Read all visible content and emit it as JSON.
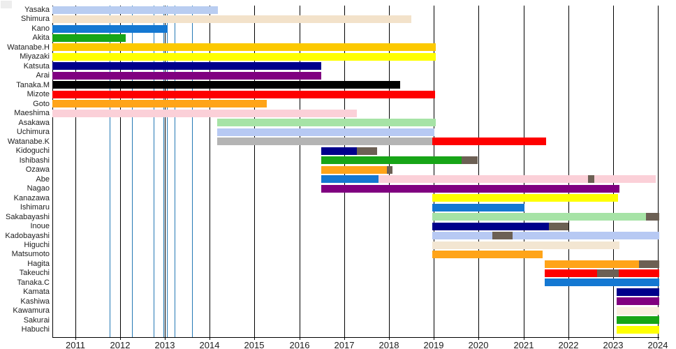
{
  "chart_data": {
    "type": "gantt",
    "x_axis": {
      "tick_labels": [
        "2011",
        "2012",
        "2013",
        "2014",
        "2015",
        "2016",
        "2017",
        "2018",
        "2019",
        "2020",
        "2021",
        "2022",
        "2023",
        "2024"
      ],
      "tick_years": [
        2011,
        2012,
        2013,
        2014,
        2015,
        2016,
        2017,
        2018,
        2019,
        2020,
        2021,
        2022,
        2023,
        2024
      ],
      "range": [
        2010.49,
        2024.03
      ],
      "grid": true
    },
    "colors": {
      "grid_line": "#000000",
      "axis_line": "#000000",
      "event_line": "#2579b5",
      "text": "#1c1c1c",
      "background": "#ffffff",
      "break_segment": "#6c6054"
    },
    "event_line_years": [
      2011.76,
      2012.27,
      2012.75,
      2012.97,
      2013.04,
      2013.22,
      2013.61
    ],
    "rows": [
      {
        "name": "Yasaka",
        "segments": [
          {
            "start": 2010.49,
            "end": 2014.18,
            "color": "#b9cdf1"
          }
        ]
      },
      {
        "name": "Shimura",
        "segments": [
          {
            "start": 2010.49,
            "end": 2018.5,
            "color": "#f3e2ca"
          }
        ]
      },
      {
        "name": "Kano",
        "segments": [
          {
            "start": 2010.49,
            "end": 2013.06,
            "color": "#1478d2"
          }
        ]
      },
      {
        "name": "Akita",
        "segments": [
          {
            "start": 2010.49,
            "end": 2012.12,
            "color": "#17a517"
          }
        ]
      },
      {
        "name": "Watanabe.H",
        "segments": [
          {
            "start": 2010.49,
            "end": 2019.05,
            "color": "#fcc900"
          }
        ]
      },
      {
        "name": "Miyazaki",
        "segments": [
          {
            "start": 2010.49,
            "end": 2019.05,
            "color": "#ffff00"
          }
        ]
      },
      {
        "name": "Katsuta",
        "segments": [
          {
            "start": 2010.49,
            "end": 2016.49,
            "color": "#00008b"
          }
        ]
      },
      {
        "name": "Arai",
        "segments": [
          {
            "start": 2010.49,
            "end": 2016.49,
            "color": "#800080"
          }
        ]
      },
      {
        "name": "Tanaka.M",
        "segments": [
          {
            "start": 2010.49,
            "end": 2018.25,
            "color": "#000000"
          }
        ]
      },
      {
        "name": "Mizote",
        "segments": [
          {
            "start": 2010.49,
            "end": 2019.02,
            "color": "#fe0000"
          }
        ]
      },
      {
        "name": "Goto",
        "segments": [
          {
            "start": 2010.49,
            "end": 2015.27,
            "color": "#ffa419"
          }
        ]
      },
      {
        "name": "Maeshima",
        "segments": [
          {
            "start": 2010.49,
            "end": 2017.29,
            "color": "#fbd0d8"
          }
        ]
      },
      {
        "name": "Asakawa",
        "segments": [
          {
            "start": 2014.17,
            "end": 2019.05,
            "color": "#a6e3a6"
          }
        ]
      },
      {
        "name": "Uchimura",
        "segments": [
          {
            "start": 2014.17,
            "end": 2019.02,
            "color": "#b7c9f3"
          }
        ]
      },
      {
        "name": "Watanabe.K",
        "segments": [
          {
            "start": 2014.17,
            "end": 2018.97,
            "color": "#b4b4b4"
          },
          {
            "start": 2018.97,
            "end": 2021.51,
            "color": "#fe0000"
          }
        ]
      },
      {
        "name": "Kidoguchi",
        "segments": [
          {
            "start": 2016.49,
            "end": 2017.29,
            "color": "#00008b"
          },
          {
            "start": 2017.29,
            "end": 2017.74,
            "color": "#6c6054"
          }
        ]
      },
      {
        "name": "Ishibashi",
        "segments": [
          {
            "start": 2016.49,
            "end": 2019.62,
            "color": "#17a517"
          },
          {
            "start": 2019.62,
            "end": 2019.98,
            "color": "#6c6054"
          }
        ]
      },
      {
        "name": "Ozawa",
        "segments": [
          {
            "start": 2016.49,
            "end": 2017.96,
            "color": "#ffa419"
          },
          {
            "start": 2017.96,
            "end": 2018.08,
            "color": "#6c6054"
          }
        ]
      },
      {
        "name": "Abe",
        "segments": [
          {
            "start": 2016.49,
            "end": 2017.77,
            "color": "#1478d2"
          },
          {
            "start": 2017.77,
            "end": 2022.44,
            "color": "#fbd0d8"
          },
          {
            "start": 2022.44,
            "end": 2022.58,
            "color": "#6c6054"
          },
          {
            "start": 2022.58,
            "end": 2023.95,
            "color": "#fbd0d8"
          }
        ]
      },
      {
        "name": "Nagao",
        "segments": [
          {
            "start": 2016.49,
            "end": 2023.14,
            "color": "#800080"
          }
        ]
      },
      {
        "name": "Kanazawa",
        "segments": [
          {
            "start": 2018.97,
            "end": 2023.12,
            "color": "#ffff00"
          }
        ]
      },
      {
        "name": "Ishimaru",
        "segments": [
          {
            "start": 2018.97,
            "end": 2021.02,
            "color": "#1478d2"
          }
        ]
      },
      {
        "name": "Sakabayashi",
        "segments": [
          {
            "start": 2018.97,
            "end": 2023.74,
            "color": "#a6e3a6"
          },
          {
            "start": 2023.74,
            "end": 2024.03,
            "color": "#6c6054"
          }
        ]
      },
      {
        "name": "Inoue",
        "segments": [
          {
            "start": 2018.97,
            "end": 2021.57,
            "color": "#00008b"
          },
          {
            "start": 2021.57,
            "end": 2022.0,
            "color": "#6c6054"
          }
        ]
      },
      {
        "name": "Kadobayashi",
        "segments": [
          {
            "start": 2018.97,
            "end": 2020.3,
            "color": "#b7c9f3"
          },
          {
            "start": 2020.3,
            "end": 2020.76,
            "color": "#6c6054"
          },
          {
            "start": 2020.76,
            "end": 2024.03,
            "color": "#b7c9f3"
          }
        ]
      },
      {
        "name": "Higuchi",
        "segments": [
          {
            "start": 2018.97,
            "end": 2023.14,
            "color": "#f3e6d2"
          }
        ]
      },
      {
        "name": "Matsumoto",
        "segments": [
          {
            "start": 2018.97,
            "end": 2021.43,
            "color": "#ffa419"
          }
        ]
      },
      {
        "name": "Hagita",
        "segments": [
          {
            "start": 2021.47,
            "end": 2023.58,
            "color": "#ffa419"
          },
          {
            "start": 2023.58,
            "end": 2024.03,
            "color": "#6c6054"
          }
        ]
      },
      {
        "name": "Takeuchi",
        "segments": [
          {
            "start": 2021.47,
            "end": 2022.64,
            "color": "#fe0000"
          },
          {
            "start": 2022.64,
            "end": 2023.12,
            "color": "#6c6054"
          },
          {
            "start": 2023.12,
            "end": 2024.03,
            "color": "#fe0000"
          }
        ]
      },
      {
        "name": "Tanaka.C",
        "segments": [
          {
            "start": 2021.47,
            "end": 2024.03,
            "color": "#1478d2"
          }
        ]
      },
      {
        "name": "Kamata",
        "segments": [
          {
            "start": 2023.08,
            "end": 2024.03,
            "color": "#00008b"
          }
        ]
      },
      {
        "name": "Kashiwa",
        "segments": [
          {
            "start": 2023.08,
            "end": 2024.03,
            "color": "#800080"
          }
        ]
      },
      {
        "name": "Kawamura",
        "segments": [
          {
            "start": 2023.08,
            "end": 2024.03,
            "color": "#f9efdf"
          }
        ]
      },
      {
        "name": "Sakurai",
        "segments": [
          {
            "start": 2023.08,
            "end": 2024.03,
            "color": "#17a517"
          }
        ]
      },
      {
        "name": "Habuchi",
        "segments": [
          {
            "start": 2023.08,
            "end": 2024.03,
            "color": "#ffff00"
          }
        ]
      }
    ]
  }
}
